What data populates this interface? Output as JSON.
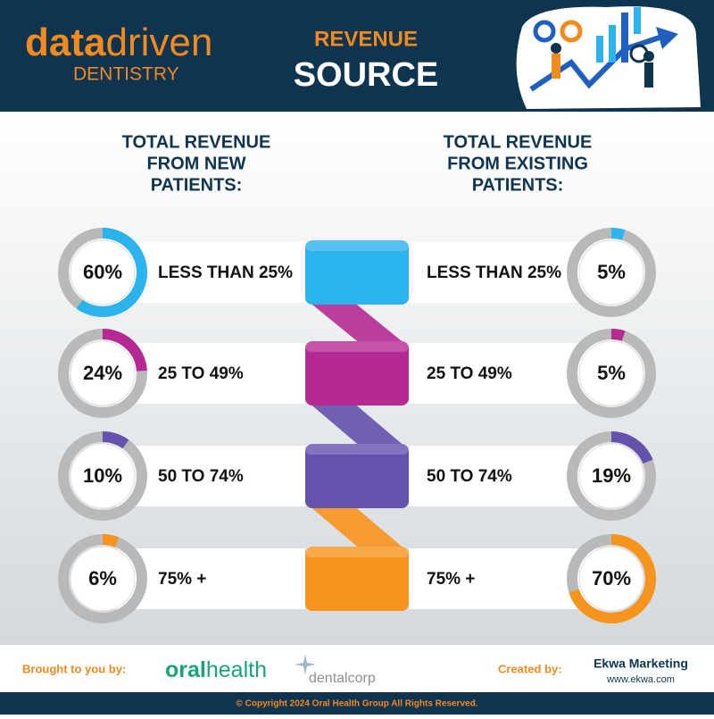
{
  "header": {
    "logo_word_1": "data",
    "logo_word_2": "driven",
    "logo_sub": "DENTISTRY",
    "title_line_1": "REVENUE",
    "title_line_2": "SOURCE"
  },
  "colors": [
    "#2bb3ee",
    "#b52a92",
    "#6552ad",
    "#f7941d"
  ],
  "panels": [
    {
      "heading": [
        "TOTAL REVENUE",
        "FROM NEW",
        "PATIENTS:"
      ],
      "rows": [
        {
          "label": "LESS THAN 25%",
          "value": 60,
          "value_label": "60%"
        },
        {
          "label": "25 TO 49%",
          "value": 24,
          "value_label": "24%"
        },
        {
          "label": "50 TO 74%",
          "value": 10,
          "value_label": "10%"
        },
        {
          "label": "75% +",
          "value": 6,
          "value_label": "6%"
        }
      ]
    },
    {
      "heading": [
        "TOTAL REVENUE",
        "FROM EXISTING",
        "PATIENTS:"
      ],
      "rows": [
        {
          "label": "LESS THAN 25%",
          "value": 5,
          "value_label": "5%"
        },
        {
          "label": "25 TO 49%",
          "value": 5,
          "value_label": "5%"
        },
        {
          "label": "50 TO 74%",
          "value": 19,
          "value_label": "19%"
        },
        {
          "label": "75% +",
          "value": 70,
          "value_label": "70%"
        }
      ]
    }
  ],
  "footer": {
    "brought_by": "Brought to you by:",
    "sponsor_1a": "oral",
    "sponsor_1b": "health",
    "sponsor_2": "dentalcorp",
    "created_by": "Created by:",
    "creator": "Ekwa Marketing",
    "creator_url": "www.ekwa.com",
    "copyright": "© Copyright 2024 Oral Health Group All Rights Reserved."
  }
}
